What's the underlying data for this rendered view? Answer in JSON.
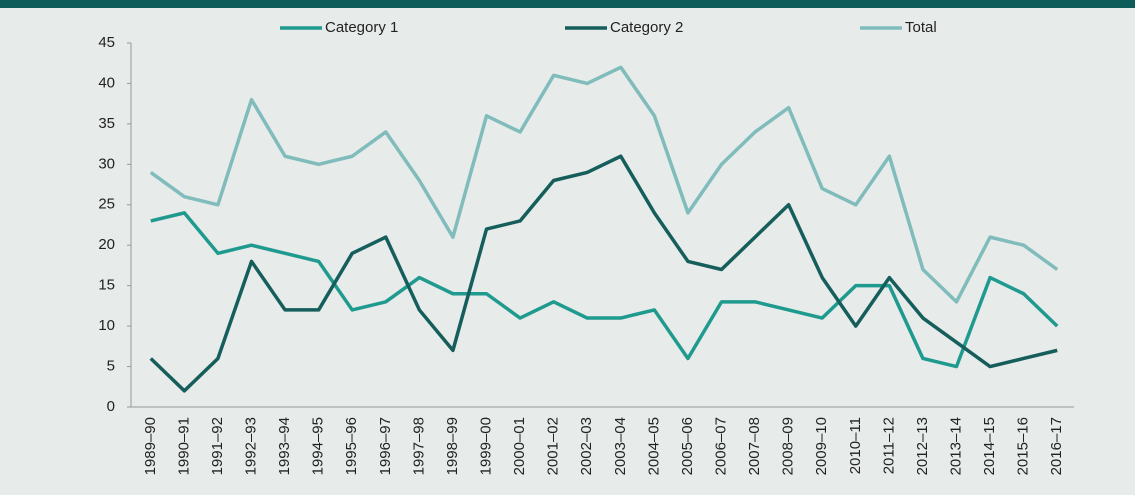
{
  "chart_data": {
    "type": "line",
    "categories": [
      "1989–90",
      "1990–91",
      "1991–92",
      "1992–93",
      "1993–94",
      "1994–95",
      "1995–96",
      "1996–97",
      "1997–98",
      "1998–99",
      "1999–00",
      "2000–01",
      "2001–02",
      "2002–03",
      "2003–04",
      "2004–05",
      "2005–06",
      "2006–07",
      "2007–08",
      "2008–09",
      "2009–10",
      "2010–11",
      "2011–12",
      "2012–13",
      "2013–14",
      "2014–15",
      "2015–16",
      "2016–17"
    ],
    "series": [
      {
        "name": "Category 1",
        "color": "#1f9a8e",
        "values": [
          23,
          24,
          19,
          20,
          19,
          18,
          12,
          13,
          16,
          14,
          14,
          11,
          13,
          11,
          11,
          12,
          6,
          13,
          13,
          12,
          11,
          15,
          15,
          6,
          5,
          16,
          14,
          10
        ]
      },
      {
        "name": "Category 2",
        "color": "#155e5c",
        "values": [
          6,
          2,
          6,
          18,
          12,
          12,
          19,
          21,
          12,
          7,
          22,
          23,
          28,
          29,
          31,
          24,
          18,
          17,
          21,
          25,
          16,
          10,
          16,
          11,
          8,
          5,
          6,
          7
        ]
      },
      {
        "name": "Total",
        "color": "#7fbcbb",
        "values": [
          29,
          26,
          25,
          38,
          31,
          30,
          31,
          34,
          28,
          21,
          36,
          34,
          41,
          40,
          42,
          36,
          24,
          30,
          34,
          37,
          27,
          25,
          31,
          17,
          13,
          21,
          20,
          17
        ]
      }
    ],
    "ylim": [
      0,
      45
    ],
    "yticks": [
      0,
      5,
      10,
      15,
      20,
      25,
      30,
      35,
      40,
      45
    ],
    "grid": false,
    "legend": "top"
  }
}
